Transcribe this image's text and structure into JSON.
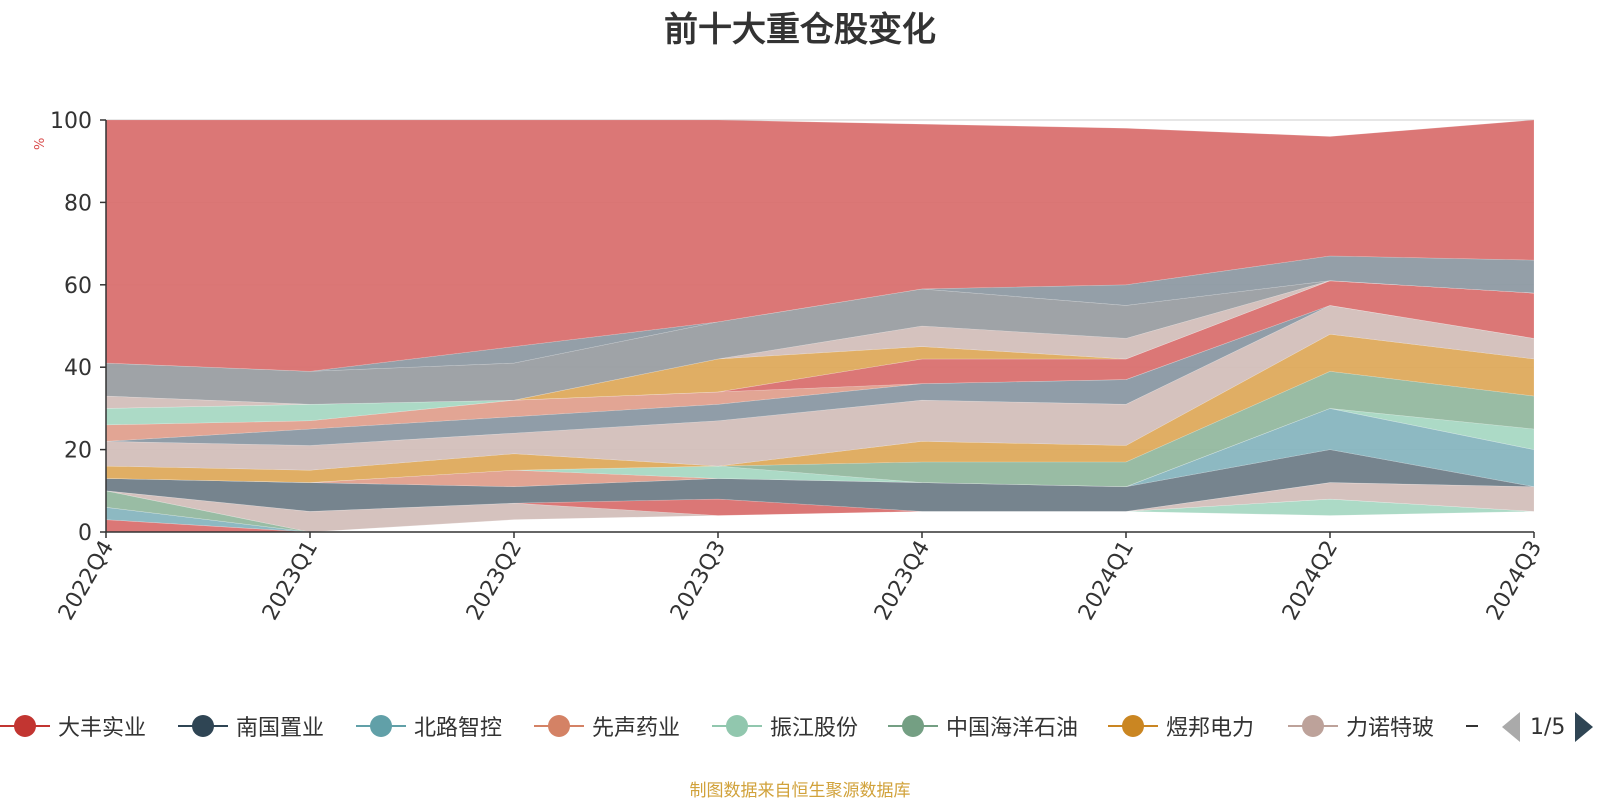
{
  "title": "前十大重仓股变化",
  "source_note": "制图数据来自恒生聚源数据库",
  "pager_text": "1/5",
  "chart_data": {
    "type": "area",
    "title": "前十大重仓股变化",
    "ylabel": "%",
    "ylim": [
      0,
      100
    ],
    "yticks": [
      0,
      20,
      40,
      60,
      80,
      100
    ],
    "grid": true,
    "legend_position": "bottom",
    "categories": [
      "2022Q4",
      "2023Q1",
      "2023Q2",
      "2023Q3",
      "2023Q4",
      "2024Q1",
      "2024Q2",
      "2024Q3"
    ],
    "layers": [
      {
        "name": "大丰实业",
        "color": "#d9706f",
        "low": [
          0,
          0,
          0,
          4,
          0,
          0,
          0,
          0
        ],
        "high": [
          3,
          0,
          0,
          4,
          0,
          0,
          0,
          0
        ]
      },
      {
        "name": "南国置业",
        "color": "#6f7d88",
        "low": [
          3,
          0,
          3,
          4,
          5,
          5,
          4,
          5
        ],
        "high": [
          3,
          0,
          3,
          4,
          5,
          5,
          4,
          5
        ]
      },
      {
        "name": "北路智控",
        "color": "#87b5bf",
        "low": [
          3,
          0,
          3,
          4,
          5,
          5,
          4,
          5
        ],
        "high": [
          6,
          0,
          3,
          4,
          5,
          5,
          4,
          5
        ]
      },
      {
        "name": "先声药业",
        "color": "#e09f8d",
        "low": [
          6,
          0,
          3,
          4,
          5,
          5,
          4,
          5
        ],
        "high": [
          6,
          0,
          3,
          4,
          5,
          5,
          4,
          5
        ]
      },
      {
        "name": "振江股份",
        "color": "#a8d8c3",
        "low": [
          6,
          0,
          3,
          4,
          5,
          5,
          4,
          5
        ],
        "high": [
          6,
          0,
          3,
          4,
          5,
          5,
          8,
          5
        ]
      },
      {
        "name": "中国海洋石油",
        "color": "#94b89f",
        "low": [
          6,
          0,
          3,
          4,
          5,
          5,
          8,
          5
        ],
        "high": [
          10,
          0,
          3,
          4,
          5,
          5,
          8,
          5
        ]
      },
      {
        "name": "煜邦电力",
        "color": "#deaa5c",
        "low": [
          10,
          0,
          3,
          4,
          5,
          5,
          8,
          5
        ],
        "high": [
          10,
          0,
          3,
          4,
          5,
          5,
          8,
          5
        ]
      },
      {
        "name": "力诺特玻",
        "color": "#d3bfba",
        "low": [
          10,
          0,
          3,
          4,
          5,
          5,
          8,
          5
        ],
        "high": [
          10,
          5,
          7,
          4,
          5,
          5,
          12,
          11
        ]
      },
      {
        "name": "大丰实业",
        "color": "#d9706f",
        "low": [
          10,
          5,
          7,
          4,
          5,
          5,
          12,
          11
        ],
        "high": [
          10,
          5,
          7,
          8,
          5,
          5,
          12,
          11
        ]
      },
      {
        "name": "南国置业",
        "color": "#6f7d88",
        "low": [
          10,
          5,
          7,
          8,
          5,
          5,
          12,
          11
        ],
        "high": [
          13,
          12,
          11,
          13,
          12,
          11,
          20,
          11
        ]
      },
      {
        "name": "北路智控",
        "color": "#87b5bf",
        "low": [
          13,
          12,
          11,
          13,
          12,
          11,
          20,
          11
        ],
        "high": [
          13,
          12,
          11,
          13,
          12,
          11,
          30,
          20
        ]
      },
      {
        "name": "先声药业",
        "color": "#e09f8d",
        "low": [
          13,
          12,
          11,
          13,
          12,
          11,
          30,
          20
        ],
        "high": [
          13,
          12,
          15,
          13,
          12,
          11,
          30,
          20
        ]
      },
      {
        "name": "振江股份",
        "color": "#a8d8c3",
        "low": [
          13,
          12,
          15,
          13,
          12,
          11,
          30,
          20
        ],
        "high": [
          13,
          12,
          15,
          16,
          12,
          11,
          30,
          25
        ]
      },
      {
        "name": "中国海洋石油",
        "color": "#94b89f",
        "low": [
          13,
          12,
          15,
          16,
          12,
          11,
          30,
          25
        ],
        "high": [
          13,
          12,
          15,
          16,
          17,
          17,
          39,
          33
        ]
      },
      {
        "name": "煜邦电力",
        "color": "#deaa5c",
        "low": [
          13,
          12,
          15,
          16,
          17,
          17,
          39,
          33
        ],
        "high": [
          16,
          15,
          19,
          16,
          22,
          21,
          48,
          42
        ]
      },
      {
        "name": "力诺特玻",
        "color": "#d3bfba",
        "low": [
          16,
          15,
          19,
          16,
          22,
          21,
          48,
          42
        ],
        "high": [
          22,
          21,
          24,
          27,
          32,
          31,
          55,
          47
        ]
      },
      {
        "name": "",
        "color": "#8a98a3",
        "low": [
          22,
          21,
          24,
          27,
          32,
          31,
          55,
          47
        ],
        "high": [
          22,
          25,
          28,
          31,
          36,
          37,
          55,
          47
        ]
      },
      {
        "name": "",
        "color": "#e0a08e",
        "low": [
          22,
          25,
          28,
          31,
          36,
          37,
          55,
          47
        ],
        "high": [
          26,
          27,
          32,
          34,
          36,
          37,
          55,
          47
        ]
      },
      {
        "name": "",
        "color": "#d9706f",
        "low": [
          26,
          27,
          32,
          34,
          36,
          37,
          55,
          47
        ],
        "high": [
          26,
          27,
          32,
          34,
          42,
          42,
          61,
          58
        ]
      },
      {
        "name": "",
        "color": "#a8d8c3",
        "low": [
          26,
          27,
          32,
          34,
          42,
          42,
          61,
          58
        ],
        "high": [
          30,
          31,
          32,
          34,
          42,
          42,
          61,
          58
        ]
      },
      {
        "name": "",
        "color": "#deaa5c",
        "low": [
          30,
          31,
          32,
          34,
          42,
          42,
          61,
          58
        ],
        "high": [
          30,
          31,
          32,
          42,
          45,
          42,
          61,
          58
        ]
      },
      {
        "name": "",
        "color": "#d3bfba",
        "low": [
          30,
          31,
          32,
          42,
          45,
          42,
          61,
          58
        ],
        "high": [
          33,
          31,
          32,
          42,
          50,
          47,
          61,
          58
        ]
      },
      {
        "name": "",
        "color": "#9a9ea2",
        "low": [
          33,
          31,
          32,
          42,
          50,
          47,
          61,
          58
        ],
        "high": [
          41,
          39,
          41,
          51,
          59,
          55,
          61,
          58
        ]
      },
      {
        "name": "",
        "color": "#8e9aa3",
        "low": [
          41,
          39,
          41,
          51,
          59,
          55,
          61,
          58
        ],
        "high": [
          41,
          39,
          45,
          51,
          59,
          60,
          67,
          66
        ]
      },
      {
        "name": "",
        "color": "#d9706f",
        "low": [
          41,
          39,
          45,
          51,
          59,
          60,
          67,
          66
        ],
        "high": [
          100,
          100,
          100,
          100,
          99,
          98,
          96,
          100
        ]
      }
    ],
    "legend": [
      {
        "name": "大丰实业",
        "color": "#c23531"
      },
      {
        "name": "南国置业",
        "color": "#2f4554"
      },
      {
        "name": "北路智控",
        "color": "#61a0a8"
      },
      {
        "name": "先声药业",
        "color": "#d48265"
      },
      {
        "name": "振江股份",
        "color": "#91c7ae"
      },
      {
        "name": "中国海洋石油",
        "color": "#749f83"
      },
      {
        "name": "煜邦电力",
        "color": "#ca8622"
      },
      {
        "name": "力诺特玻",
        "color": "#bda29a"
      }
    ]
  }
}
